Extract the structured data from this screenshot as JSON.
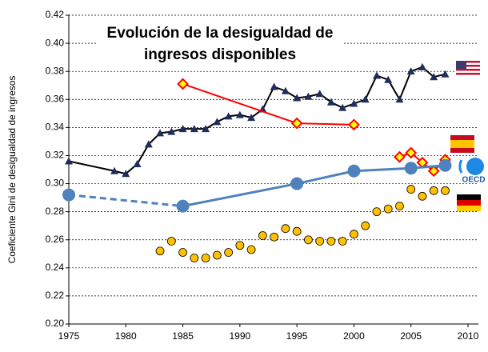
{
  "chart_data": {
    "type": "line",
    "title": "Evolución de la desigualdad de ingresos disponibles",
    "y_label": "Coeficiente Gini de desigualdad de ingresos",
    "oecd_label": "OECD",
    "xlim": [
      1975,
      2010
    ],
    "xticks": [
      1975,
      1980,
      1985,
      1990,
      1995,
      2000,
      2005,
      2010
    ],
    "ylim": [
      0.2,
      0.42
    ],
    "yticks": [
      {
        "value": 0.2,
        "label": "0.20"
      },
      {
        "value": 0.22,
        "label": "0.22"
      },
      {
        "value": 0.24,
        "label": "0.24"
      },
      {
        "value": 0.26,
        "label": "0.26"
      },
      {
        "value": 0.28,
        "label": "0.28"
      },
      {
        "value": 0.3,
        "label": "0.30"
      },
      {
        "value": 0.32,
        "label": "0.32"
      },
      {
        "value": 0.34,
        "label": "0.34"
      },
      {
        "value": 0.36,
        "label": "0.36"
      },
      {
        "value": 0.38,
        "label": "0.38"
      },
      {
        "value": 0.4,
        "label": "0.40"
      },
      {
        "value": 0.42,
        "label": "0.42"
      }
    ],
    "grid": true,
    "series": [
      {
        "color": "#1f2d5c",
        "line_color": "#000000",
        "marker": "triangle",
        "x": [
          1975,
          1979,
          1980,
          1981,
          1982,
          1983,
          1984,
          1985,
          1986,
          1987,
          1988,
          1989,
          1990,
          1991,
          1992,
          1993,
          1994,
          1995,
          1996,
          1997,
          1998,
          1999,
          2000,
          2001,
          2002,
          2003,
          2004,
          2005,
          2006,
          2007,
          2008
        ],
        "values": [
          0.316,
          0.309,
          0.307,
          0.314,
          0.328,
          0.336,
          0.337,
          0.339,
          0.339,
          0.339,
          0.344,
          0.348,
          0.349,
          0.347,
          0.353,
          0.369,
          0.366,
          0.361,
          0.362,
          0.364,
          0.358,
          0.354,
          0.357,
          0.36,
          0.377,
          0.374,
          0.36,
          0.38,
          0.383,
          0.376,
          0.378
        ]
      },
      {
        "color": "#ffff00",
        "line_color": "#ff0000",
        "marker": "diamond",
        "x": [
          1985,
          1995,
          2000
        ],
        "values": [
          0.371,
          0.343,
          0.342
        ]
      },
      {
        "color": "#ffff00",
        "line_color": "#ff0000",
        "marker": "diamond",
        "x": [
          2004,
          2005,
          2006,
          2007,
          2008
        ],
        "values": [
          0.319,
          0.322,
          0.315,
          0.309,
          0.317
        ]
      },
      {
        "color": "#ffc000",
        "marker": "circle",
        "x": [
          1983,
          1984,
          1985,
          1986,
          1987,
          1988,
          1989,
          1990,
          1991,
          1992,
          1993,
          1994,
          1995,
          1996,
          1997,
          1998,
          1999,
          2000,
          2001,
          2002,
          2003,
          2004,
          2005,
          2006,
          2007,
          2008
        ],
        "values": [
          0.252,
          0.259,
          0.251,
          0.247,
          0.247,
          0.249,
          0.251,
          0.256,
          0.253,
          0.263,
          0.262,
          0.268,
          0.266,
          0.26,
          0.259,
          0.259,
          0.259,
          0.264,
          0.27,
          0.28,
          0.282,
          0.284,
          0.296,
          0.291,
          0.295,
          0.295
        ]
      },
      {
        "color": "#4f81bd",
        "line_color": "#4f81bd",
        "marker": "big-circle",
        "dashed_segments": [
          0
        ],
        "x": [
          1975,
          1985,
          1995,
          2000,
          2005,
          2008
        ],
        "values": [
          0.292,
          0.284,
          0.3,
          0.309,
          0.311,
          0.313
        ]
      }
    ]
  }
}
